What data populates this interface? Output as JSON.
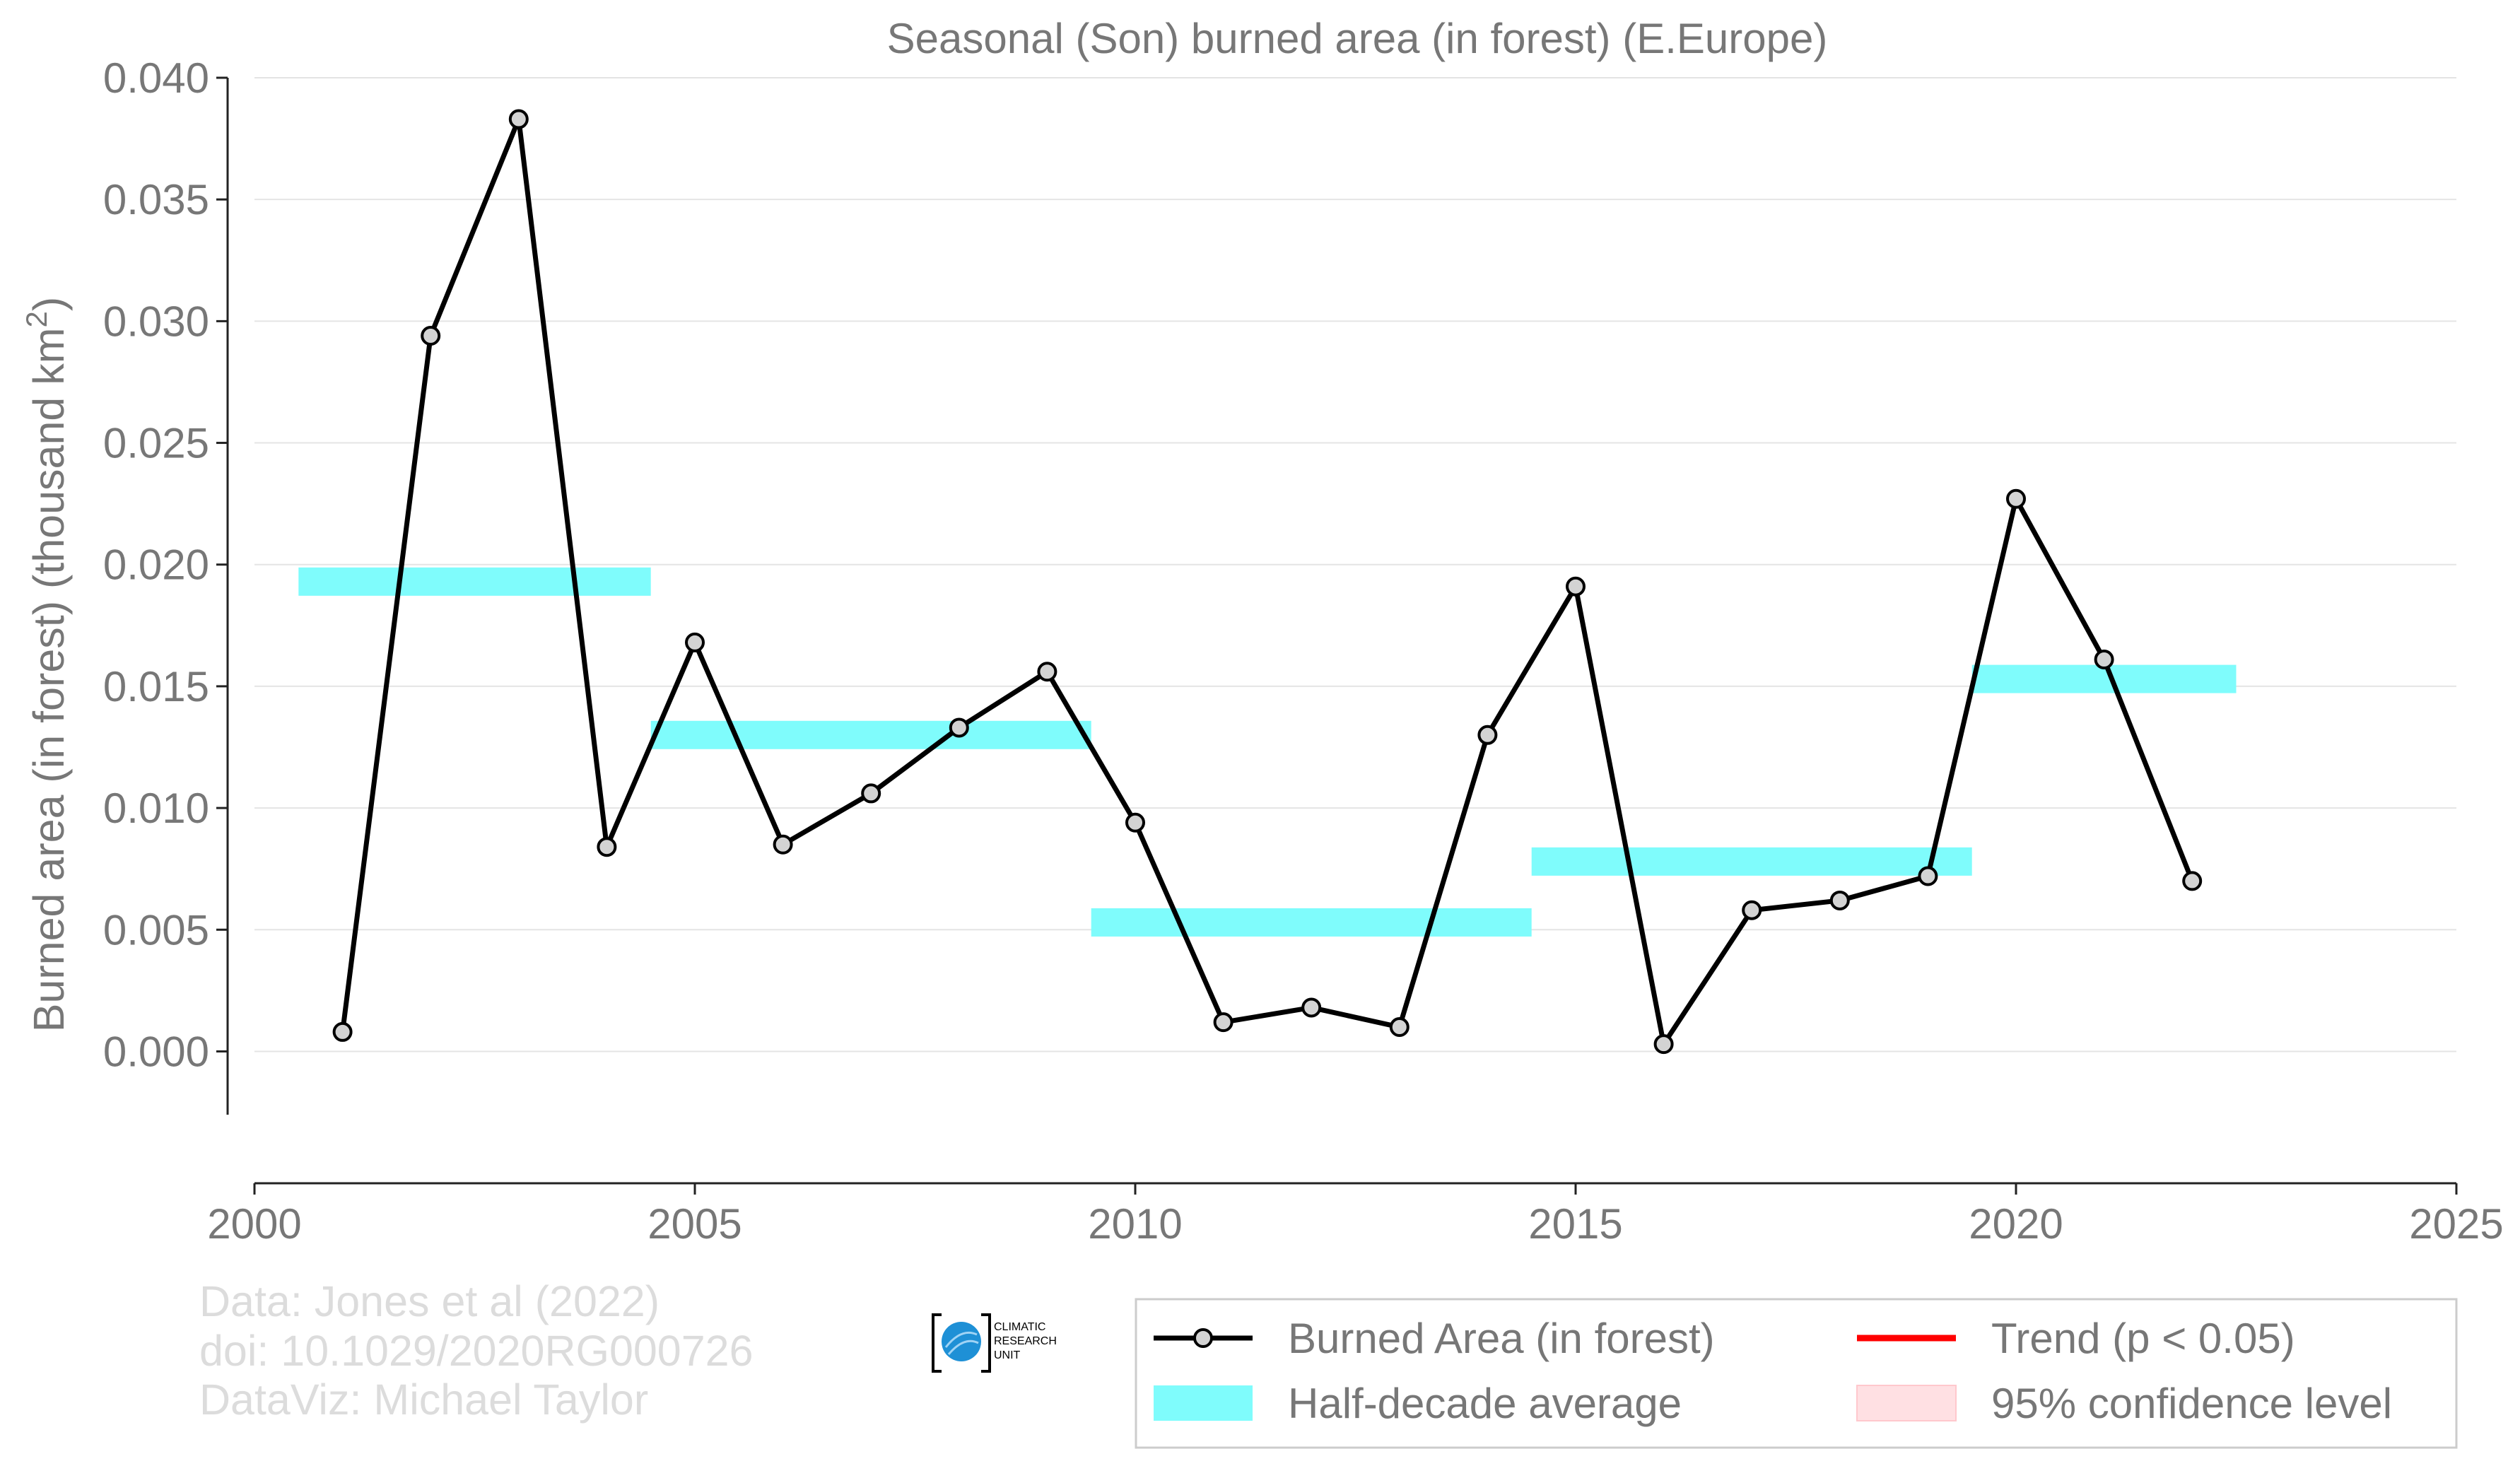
{
  "chart_data": {
    "type": "line",
    "title": "Seasonal (Son) burned area (in forest) (E.Europe)",
    "ylabel_main": "Burned area (in forest) (thousand km",
    "ylabel_sup": "2",
    "ylabel_close": ")",
    "xlim": [
      2000,
      2025
    ],
    "ylim": [
      -0.0026,
      0.04
    ],
    "x_ticks": [
      2000,
      2005,
      2010,
      2015,
      2020,
      2025
    ],
    "x_tick_labels": [
      "2000",
      "2005",
      "2010",
      "2015",
      "2020",
      "2025"
    ],
    "y_ticks": [
      0.0,
      0.005,
      0.01,
      0.015,
      0.02,
      0.025,
      0.03,
      0.035,
      0.04
    ],
    "y_tick_labels": [
      "0.000",
      "0.005",
      "0.010",
      "0.015",
      "0.020",
      "0.025",
      "0.030",
      "0.035",
      "0.040"
    ],
    "grid": "horizontal",
    "legend_position": "bottom-right",
    "series": [
      {
        "name": "Burned Area (in forest)",
        "color": "#000000",
        "x": [
          2001,
          2002,
          2003,
          2004,
          2005,
          2006,
          2007,
          2008,
          2009,
          2010,
          2011,
          2012,
          2013,
          2014,
          2015,
          2016,
          2017,
          2018,
          2019,
          2020,
          2021,
          2022
        ],
        "y": [
          0.0008,
          0.0294,
          0.0383,
          0.0084,
          0.0168,
          0.0085,
          0.0106,
          0.0133,
          0.0156,
          0.0094,
          0.0012,
          0.0018,
          0.001,
          0.013,
          0.0191,
          0.0003,
          0.0058,
          0.0062,
          0.0072,
          0.0227,
          0.0161,
          0.007
        ]
      }
    ],
    "half_decade_average": {
      "name": "Half-decade average",
      "color": "#7ffcfc",
      "segments": [
        {
          "x0": 2000.5,
          "x1": 2004.5,
          "y": 0.0193
        },
        {
          "x0": 2004.5,
          "x1": 2009.5,
          "y": 0.013
        },
        {
          "x0": 2009.5,
          "x1": 2014.5,
          "y": 0.0053
        },
        {
          "x0": 2014.5,
          "x1": 2019.5,
          "y": 0.0078
        },
        {
          "x0": 2019.5,
          "x1": 2022.5,
          "y": 0.0153
        }
      ]
    },
    "legend": [
      {
        "label": "Burned Area (in forest)",
        "kind": "line-marker",
        "color": "#000000"
      },
      {
        "label": "Trend (p < 0.05)",
        "kind": "line",
        "color": "#ff0000"
      },
      {
        "label": "Half-decade average",
        "kind": "patch",
        "color": "#7ffcfc"
      },
      {
        "label": "95% confidence level",
        "kind": "patch",
        "color": "#ffe0e3"
      }
    ]
  },
  "credits": {
    "line1": "Data: Jones et al (2022)",
    "line2": "doi: 10.1029/2020RG000726",
    "line3": "DataViz: Michael Taylor"
  },
  "logo": {
    "line1": "CLIMATIC",
    "line2": "RESEARCH",
    "line3": "UNIT",
    "color": "#1e90d6"
  }
}
